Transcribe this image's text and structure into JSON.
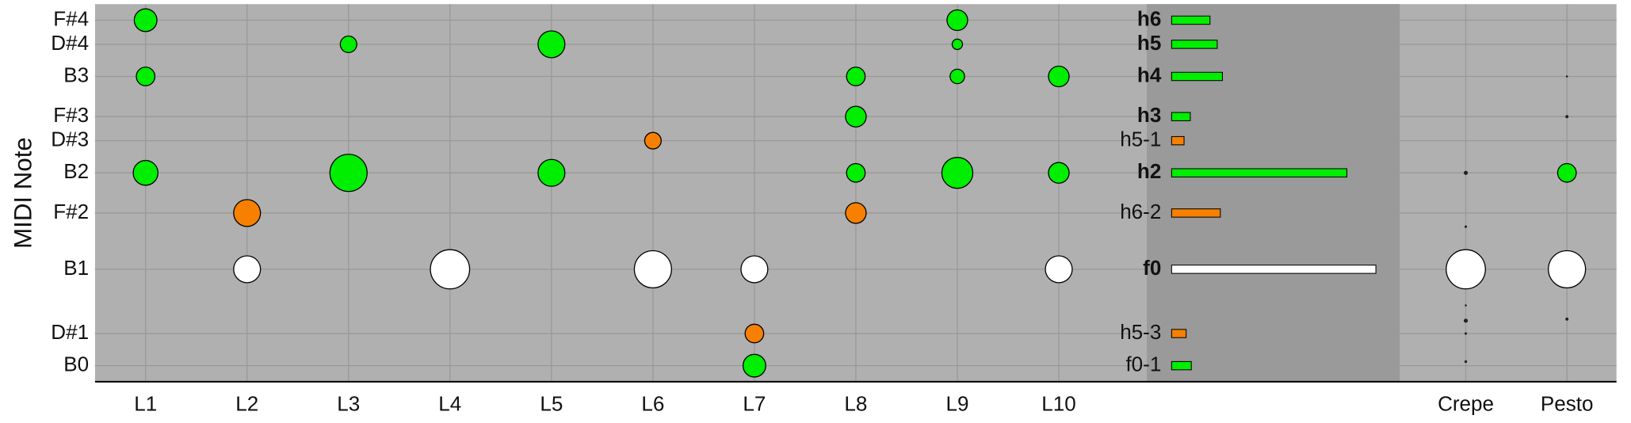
{
  "chart_data": {
    "type": "bubble",
    "y_label": "MIDI Note",
    "categories": [
      "L1",
      "L2",
      "L3",
      "L4",
      "L5",
      "L6",
      "L7",
      "L8",
      "L9",
      "L10"
    ],
    "ylim": [
      21,
      68
    ],
    "yticks": [
      {
        "value": 23,
        "label": "B0"
      },
      {
        "value": 27,
        "label": "D#1"
      },
      {
        "value": 35,
        "label": "B1"
      },
      {
        "value": 42,
        "label": "F#2"
      },
      {
        "value": 47,
        "label": "B2"
      },
      {
        "value": 51,
        "label": "D#3"
      },
      {
        "value": 54,
        "label": "F#3"
      },
      {
        "value": 59,
        "label": "B3"
      },
      {
        "value": 63,
        "label": "D#4"
      },
      {
        "value": 66,
        "label": "F#4"
      }
    ],
    "grid": true,
    "series": [
      {
        "color": "#00ee00",
        "points": [
          {
            "x": "L1",
            "y": 66,
            "size": 11
          },
          {
            "x": "L1",
            "y": 59,
            "size": 9
          },
          {
            "x": "L1",
            "y": 47,
            "size": 12
          },
          {
            "x": "L3",
            "y": 63,
            "size": 8
          },
          {
            "x": "L3",
            "y": 47,
            "size": 18
          },
          {
            "x": "L5",
            "y": 63,
            "size": 13
          },
          {
            "x": "L5",
            "y": 47,
            "size": 13
          },
          {
            "x": "L7",
            "y": 23,
            "size": 11
          },
          {
            "x": "L8",
            "y": 59,
            "size": 9
          },
          {
            "x": "L8",
            "y": 54,
            "size": 10
          },
          {
            "x": "L8",
            "y": 47,
            "size": 9
          },
          {
            "x": "L9",
            "y": 66,
            "size": 10
          },
          {
            "x": "L9",
            "y": 63,
            "size": 5
          },
          {
            "x": "L9",
            "y": 59,
            "size": 7
          },
          {
            "x": "L9",
            "y": 47,
            "size": 15
          },
          {
            "x": "L10",
            "y": 59,
            "size": 10
          },
          {
            "x": "L10",
            "y": 47,
            "size": 10
          }
        ]
      },
      {
        "color": "#f78000",
        "points": [
          {
            "x": "L2",
            "y": 42,
            "size": 13
          },
          {
            "x": "L6",
            "y": 51,
            "size": 8
          },
          {
            "x": "L7",
            "y": 27,
            "size": 9
          },
          {
            "x": "L8",
            "y": 42,
            "size": 10
          }
        ]
      },
      {
        "color": "#ffffff",
        "points": [
          {
            "x": "L2",
            "y": 35,
            "size": 13
          },
          {
            "x": "L4",
            "y": 35,
            "size": 19
          },
          {
            "x": "L6",
            "y": 35,
            "size": 18
          },
          {
            "x": "L7",
            "y": 35,
            "size": 13
          },
          {
            "x": "L10",
            "y": 35,
            "size": 13
          }
        ]
      }
    ],
    "harmonics": {
      "labels": [
        "h6",
        "h5",
        "h4",
        "h3",
        "h5-1",
        "h2",
        "h6-2",
        "f0",
        "h5-3",
        "f0-1"
      ],
      "y": [
        66,
        63,
        59,
        54,
        51,
        47,
        42,
        35,
        27,
        23
      ],
      "values": [
        37,
        44,
        49,
        18,
        12,
        169,
        47,
        197,
        14,
        19
      ],
      "colors": [
        "#00ee00",
        "#00ee00",
        "#00ee00",
        "#00ee00",
        "#f78000",
        "#00ee00",
        "#f78000",
        "#ffffff",
        "#f78000",
        "#00ee00"
      ],
      "bold": [
        true,
        true,
        true,
        true,
        false,
        true,
        false,
        true,
        false,
        false
      ],
      "xlim": [
        0,
        220
      ]
    },
    "models": {
      "categories": [
        "Crepe",
        "Pesto"
      ],
      "series": [
        {
          "color": "#222222",
          "points": [
            {
              "x": "Crepe",
              "y": 47,
              "size": 2
            },
            {
              "x": "Crepe",
              "y": 40.3,
              "size": 1.2
            },
            {
              "x": "Crepe",
              "y": 30.5,
              "size": 1
            },
            {
              "x": "Crepe",
              "y": 28.6,
              "size": 2
            },
            {
              "x": "Crepe",
              "y": 27,
              "size": 1.2
            },
            {
              "x": "Crepe",
              "y": 23.5,
              "size": 1.3
            },
            {
              "x": "Pesto",
              "y": 59,
              "size": 1
            },
            {
              "x": "Pesto",
              "y": 54,
              "size": 1.5
            },
            {
              "x": "Pesto",
              "y": 28.8,
              "size": 1.5
            }
          ]
        },
        {
          "color": "#00ee00",
          "points": [
            {
              "x": "Pesto",
              "y": 47,
              "size": 9
            }
          ]
        },
        {
          "color": "#ffffff",
          "points": [
            {
              "x": "Crepe",
              "y": 35,
              "size": 19
            },
            {
              "x": "Pesto",
              "y": 35,
              "size": 18
            }
          ]
        }
      ]
    }
  }
}
